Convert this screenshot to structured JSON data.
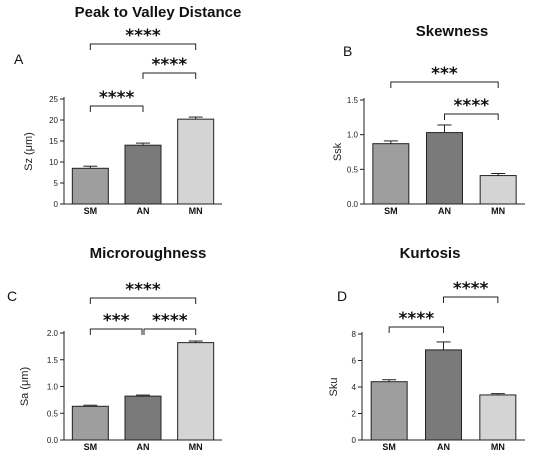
{
  "chart_data": [
    {
      "panel": "A",
      "type": "bar",
      "title": "Peak to Valley Distance",
      "ylabel": "Sz (μm)",
      "categories": [
        "SM",
        "AN",
        "MN"
      ],
      "values": [
        8.5,
        14.0,
        20.2
      ],
      "errors": [
        0.5,
        0.5,
        0.5
      ],
      "colors": [
        "#9e9e9e",
        "#7a7a7a",
        "#d4d4d4"
      ],
      "ylim": [
        0,
        25
      ],
      "yticks": [
        0,
        5,
        10,
        15,
        20,
        25
      ],
      "ytick_labels": [
        "0",
        "5",
        "10",
        "15",
        "20",
        "25"
      ],
      "significance": [
        {
          "from": 0,
          "to": 1,
          "label": "****"
        },
        {
          "from": 1,
          "to": 2,
          "label": "****"
        },
        {
          "from": 0,
          "to": 2,
          "label": "****"
        }
      ]
    },
    {
      "panel": "B",
      "type": "bar",
      "title": "Skewness",
      "ylabel": "Ssk",
      "categories": [
        "SM",
        "AN",
        "MN"
      ],
      "values": [
        0.87,
        1.03,
        0.41
      ],
      "errors": [
        0.04,
        0.11,
        0.03
      ],
      "colors": [
        "#9e9e9e",
        "#7a7a7a",
        "#d4d4d4"
      ],
      "ylim": [
        0,
        1.5
      ],
      "yticks": [
        0,
        0.5,
        1.0,
        1.5
      ],
      "ytick_labels": [
        "0.0",
        "0.5",
        "1.0",
        "1.5"
      ],
      "significance": [
        {
          "from": 1,
          "to": 2,
          "label": "****"
        },
        {
          "from": 0,
          "to": 2,
          "label": "***"
        }
      ]
    },
    {
      "panel": "C",
      "type": "bar",
      "title": "Microroughness",
      "ylabel": "Sa (μm)",
      "categories": [
        "SM",
        "AN",
        "MN"
      ],
      "values": [
        0.63,
        0.82,
        1.82
      ],
      "errors": [
        0.02,
        0.02,
        0.03
      ],
      "colors": [
        "#9e9e9e",
        "#7a7a7a",
        "#d4d4d4"
      ],
      "ylim": [
        0,
        2.0
      ],
      "yticks": [
        0,
        0.5,
        1.0,
        1.5,
        2.0
      ],
      "ytick_labels": [
        "0.0",
        "0.5",
        "1.0",
        "1.5",
        "2.0"
      ],
      "significance": [
        {
          "from": 0,
          "to": 1,
          "label": "***"
        },
        {
          "from": 1,
          "to": 2,
          "label": "****"
        },
        {
          "from": 0,
          "to": 2,
          "label": "****"
        }
      ]
    },
    {
      "panel": "D",
      "type": "bar",
      "title": "Kurtosis",
      "ylabel": "Sku",
      "categories": [
        "SM",
        "AN",
        "MN"
      ],
      "values": [
        4.4,
        6.8,
        3.4
      ],
      "errors": [
        0.15,
        0.6,
        0.1
      ],
      "colors": [
        "#9e9e9e",
        "#7a7a7a",
        "#d4d4d4"
      ],
      "ylim": [
        0,
        8
      ],
      "yticks": [
        0,
        2,
        4,
        6,
        8
      ],
      "ytick_labels": [
        "0",
        "2",
        "4",
        "6",
        "8"
      ],
      "significance": [
        {
          "from": 0,
          "to": 1,
          "label": "****"
        },
        {
          "from": 1,
          "to": 2,
          "label": "****"
        }
      ]
    }
  ]
}
